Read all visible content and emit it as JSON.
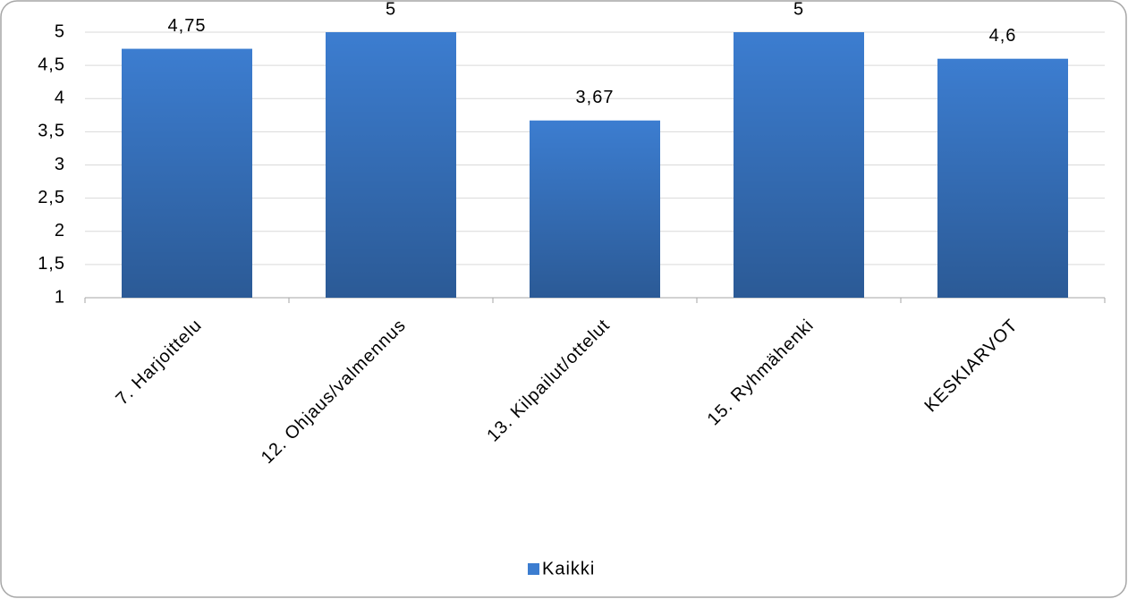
{
  "chart_data": {
    "type": "bar",
    "categories": [
      "7. Harjoittelu",
      "12. Ohjaus/valmennus",
      "13. Kilpailut/ottelut",
      "15. Ryhmähenki",
      "KESKIARVOT"
    ],
    "series": [
      {
        "name": "Kaikki",
        "color": "#3c7dd0",
        "values": [
          4.75,
          5,
          3.67,
          5,
          4.6
        ],
        "value_labels": [
          "4,75",
          "5",
          "3,67",
          "5",
          "4,6"
        ]
      }
    ],
    "ylim": [
      1,
      5
    ],
    "yticks": [
      1,
      {
        "value": 1.5,
        "label": "1,5"
      },
      2,
      {
        "value": 2.5,
        "label": "2,5"
      },
      3,
      {
        "value": 3.5,
        "label": "3,5"
      },
      4,
      {
        "value": 4.5,
        "label": "4,5"
      },
      5
    ],
    "grid": true,
    "legend": "bottom"
  }
}
